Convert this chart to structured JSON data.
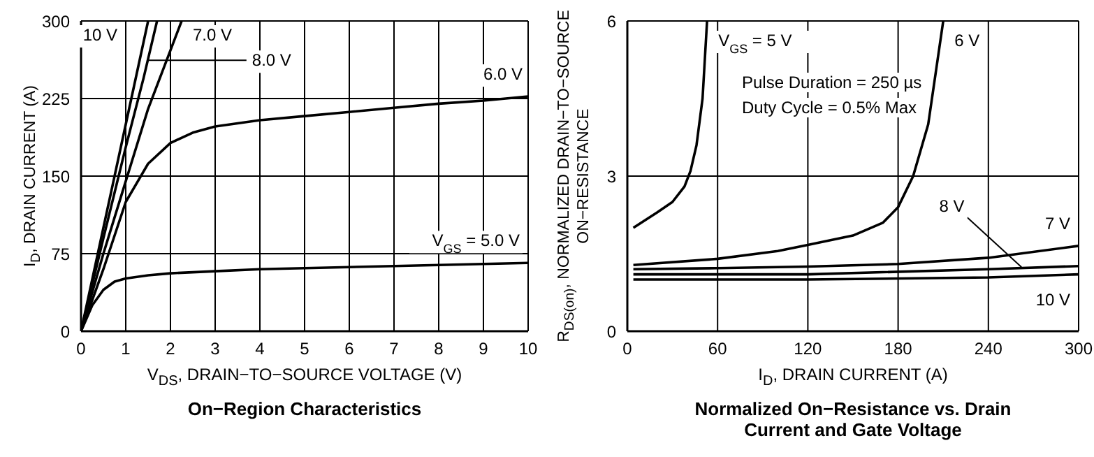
{
  "chart_data": [
    {
      "type": "line",
      "title": "On−Region Characteristics",
      "xlabel": "V$_{DS}$, DRAIN−TO−SOURCE VOLTAGE (V)",
      "ylabel": "I$_{D}$, DRAIN CURRENT (A)",
      "xlim": [
        0,
        10
      ],
      "xticks": [
        0,
        1,
        2,
        3,
        4,
        5,
        6,
        7,
        8,
        9,
        10
      ],
      "ylim": [
        0,
        300
      ],
      "yticks": [
        0,
        75,
        150,
        225,
        300
      ],
      "grid": true,
      "marker": "none",
      "line_style": "solid",
      "series": [
        {
          "name": "10 V",
          "color": "#000000",
          "x": [
            0,
            0.5,
            1,
            1.5
          ],
          "values": [
            0,
            100,
            200,
            300
          ]
        },
        {
          "name": "8.0 V",
          "color": "#000000",
          "x": [
            0,
            0.5,
            1,
            1.4,
            1.7
          ],
          "values": [
            0,
            90,
            178,
            245,
            300
          ]
        },
        {
          "name": "7.0 V",
          "color": "#000000",
          "x": [
            0,
            0.5,
            1,
            1.5,
            2.25
          ],
          "values": [
            0,
            75,
            145,
            215,
            300
          ]
        },
        {
          "name": "6.0 V",
          "color": "#000000",
          "x": [
            0,
            0.5,
            1,
            1.5,
            2,
            2.5,
            3,
            4,
            5,
            6,
            7,
            8,
            9,
            10
          ],
          "values": [
            0,
            60,
            125,
            162,
            182,
            192,
            198,
            204,
            208,
            212,
            216,
            220,
            223,
            227
          ]
        },
        {
          "name": "V$_{GS}$ = 5.0 V",
          "color": "#000000",
          "x": [
            0,
            0.25,
            0.5,
            0.75,
            1,
            1.5,
            2,
            3,
            4,
            5,
            6,
            7,
            8,
            9,
            10
          ],
          "values": [
            0,
            25,
            40,
            48,
            51,
            54,
            56,
            58,
            60,
            61,
            62,
            63,
            64,
            65,
            66
          ]
        }
      ]
    },
    {
      "type": "line",
      "title": "Normalized On−Resistance vs. Drain Current and Gate Voltage",
      "xlabel": "I$_{D}$, DRAIN CURRENT (A)",
      "ylabel": "R$_{DS(on)}$, NORMALIZED DRAIN−TO−SOURCE ON−RESISTANCE",
      "xlim": [
        0,
        300
      ],
      "xticks": [
        0,
        60,
        120,
        180,
        240,
        300
      ],
      "ylim": [
        0,
        6
      ],
      "yticks": [
        0,
        3,
        6
      ],
      "grid": true,
      "marker": "none",
      "line_style": "solid",
      "annotations": [
        "Pulse Duration = 250 µs",
        "Duty Cycle = 0.5% Max"
      ],
      "series": [
        {
          "name": "V$_{GS}$ = 5 V",
          "color": "#000000",
          "x": [
            4,
            20,
            30,
            38,
            42,
            46,
            50,
            53
          ],
          "values": [
            2.0,
            2.3,
            2.5,
            2.8,
            3.1,
            3.6,
            4.5,
            6
          ]
        },
        {
          "name": "6 V",
          "color": "#000000",
          "x": [
            4,
            60,
            100,
            120,
            150,
            170,
            180,
            190,
            200,
            205,
            210
          ],
          "values": [
            1.28,
            1.4,
            1.55,
            1.67,
            1.85,
            2.1,
            2.4,
            3.0,
            4.0,
            5.0,
            6
          ]
        },
        {
          "name": "7 V",
          "color": "#000000",
          "x": [
            4,
            60,
            120,
            180,
            240,
            300
          ],
          "values": [
            1.2,
            1.22,
            1.25,
            1.3,
            1.42,
            1.65
          ]
        },
        {
          "name": "8 V",
          "color": "#000000",
          "x": [
            4,
            120,
            240,
            300
          ],
          "values": [
            1.1,
            1.1,
            1.2,
            1.26
          ]
        },
        {
          "name": "10 V",
          "color": "#000000",
          "x": [
            4,
            120,
            240,
            300
          ],
          "values": [
            1.0,
            1.0,
            1.04,
            1.1
          ]
        }
      ]
    }
  ]
}
